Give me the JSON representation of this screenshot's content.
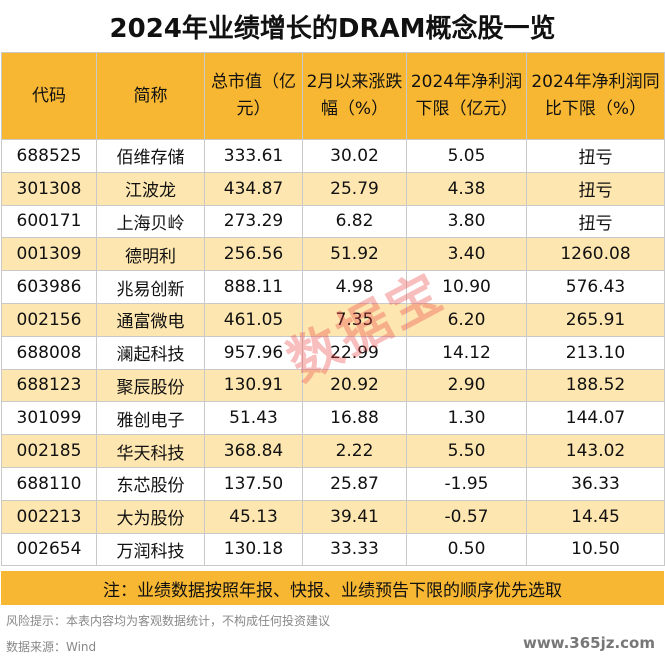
{
  "title": "2024年业绩增长的DRAM概念股一览",
  "table": {
    "headers": [
      "代码",
      "简称",
      "总市值（亿元）",
      "2月以来涨跌幅（%）",
      "2024年净利润下限（亿元）",
      "2024年净利润同比下限（%）"
    ],
    "rows": [
      [
        "688525",
        "佰维存储",
        "333.61",
        "30.02",
        "5.05",
        "扭亏"
      ],
      [
        "301308",
        "江波龙",
        "434.87",
        "25.79",
        "4.38",
        "扭亏"
      ],
      [
        "600171",
        "上海贝岭",
        "273.29",
        "6.82",
        "3.80",
        "扭亏"
      ],
      [
        "001309",
        "德明利",
        "256.56",
        "51.92",
        "3.40",
        "1260.08"
      ],
      [
        "603986",
        "兆易创新",
        "888.11",
        "4.98",
        "10.90",
        "576.43"
      ],
      [
        "002156",
        "通富微电",
        "461.05",
        "7.35",
        "6.20",
        "265.91"
      ],
      [
        "688008",
        "澜起科技",
        "957.96",
        "22.99",
        "14.12",
        "213.10"
      ],
      [
        "688123",
        "聚辰股份",
        "130.91",
        "20.92",
        "2.90",
        "188.52"
      ],
      [
        "301099",
        "雅创电子",
        "51.43",
        "16.88",
        "1.30",
        "144.07"
      ],
      [
        "002185",
        "华天科技",
        "368.84",
        "2.22",
        "5.50",
        "143.02"
      ],
      [
        "688110",
        "东芯股份",
        "137.50",
        "25.87",
        "-1.95",
        "36.33"
      ],
      [
        "002213",
        "大为股份",
        "45.13",
        "39.41",
        "-0.57",
        "14.45"
      ],
      [
        "002654",
        "万润科技",
        "130.18",
        "33.33",
        "0.50",
        "10.50"
      ]
    ]
  },
  "note": "注：业绩数据按照年报、快报、业绩预告下限的顺序优先选取",
  "risk": "风险提示：本表内容均为客观数据统计，不构成任何投资建议",
  "source": "数据来源：Wind",
  "watermark": "数据宝",
  "site": "www.365jz.com"
}
